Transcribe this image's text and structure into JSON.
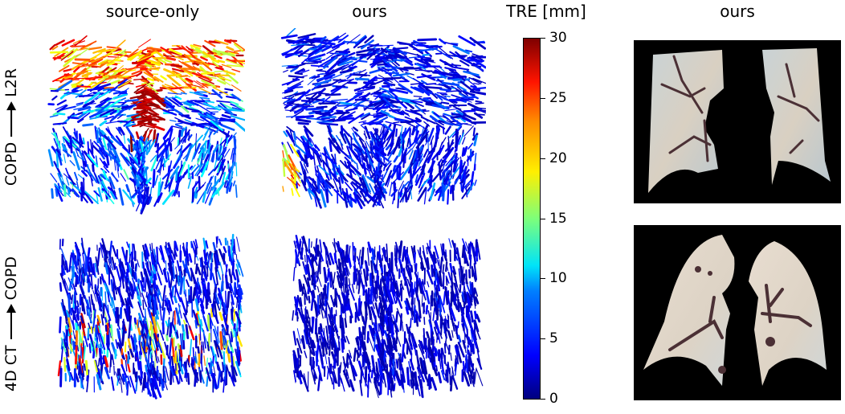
{
  "columns": {
    "col1_title": "source-only",
    "col2_title": "ours",
    "colorbar_title": "TRE [mm]",
    "col4_title": "ours"
  },
  "rows": [
    {
      "source": "COPD",
      "target": "L2R"
    },
    {
      "source": "4D CT",
      "target": "COPD"
    }
  ],
  "colorbar": {
    "label": "TRE [mm]",
    "min": 0,
    "max": 30,
    "ticks": [
      "30",
      "25",
      "20",
      "15",
      "10",
      "5",
      "0"
    ],
    "colormap": "jet",
    "colors": {
      "low": "#00007f",
      "mid_low": "#0080ff",
      "mid": "#7dff7a",
      "mid_high": "#ffef00",
      "high_orange": "#ff8c00",
      "red": "#ff1400",
      "max": "#7f0000"
    }
  },
  "panels": [
    {
      "row": "COPD → L2R",
      "column": "source-only",
      "content": "3D displacement vector field of lungs colored by TRE; large errors (orange/red) in upper lobes and central region"
    },
    {
      "row": "COPD → L2R",
      "column": "ours",
      "content": "3D displacement vector field mostly blue (low TRE) with few yellow/red vectors at lower-left"
    },
    {
      "row": "COPD → L2R",
      "column": "ours (image)",
      "content": "Coronal lung CT overlay, pale blue/beige lung tissue with dark vessels on black background"
    },
    {
      "row": "4D CT → COPD",
      "column": "source-only",
      "content": "3D displacement vector field mostly blue with mixed cyan/yellow/red vectors in lower central region"
    },
    {
      "row": "4D CT → COPD",
      "column": "ours",
      "content": "3D displacement vector field almost entirely dark blue (low TRE)"
    },
    {
      "row": "4D CT → COPD",
      "column": "ours (image)",
      "content": "Coronal lung CT overlay, beige lung tissue with dark vessels on black background"
    }
  ]
}
